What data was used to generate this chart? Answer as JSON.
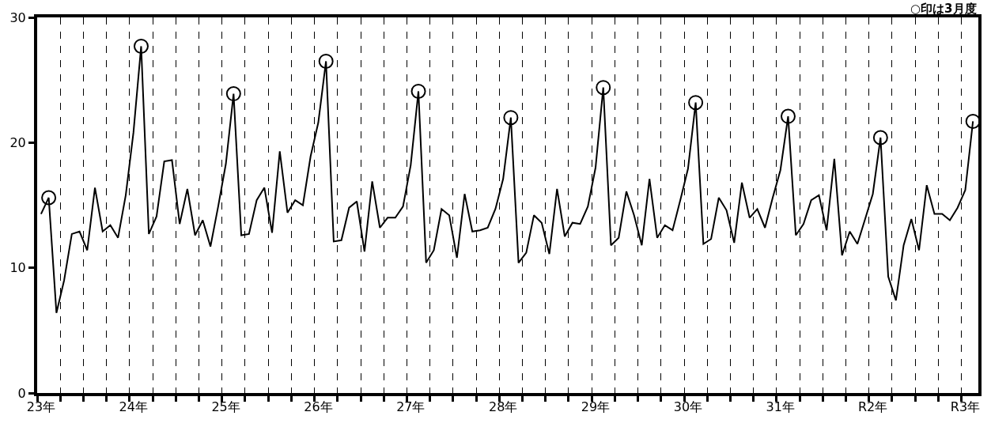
{
  "chart_data": {
    "type": "line",
    "annotations": [
      "○印は3月度"
    ],
    "categories": [
      "23年",
      null,
      null,
      null,
      null,
      null,
      null,
      null,
      null,
      null,
      null,
      null,
      "24年",
      null,
      null,
      null,
      null,
      null,
      null,
      null,
      null,
      null,
      null,
      null,
      "25年",
      null,
      null,
      null,
      null,
      null,
      null,
      null,
      null,
      null,
      null,
      null,
      "26年",
      null,
      null,
      null,
      null,
      null,
      null,
      null,
      null,
      null,
      null,
      null,
      "27年",
      null,
      null,
      null,
      null,
      null,
      null,
      null,
      null,
      null,
      null,
      null,
      "28年",
      null,
      null,
      null,
      null,
      null,
      null,
      null,
      null,
      null,
      null,
      null,
      "29年",
      null,
      null,
      null,
      null,
      null,
      null,
      null,
      null,
      null,
      null,
      null,
      "30年",
      null,
      null,
      null,
      null,
      null,
      null,
      null,
      null,
      null,
      null,
      null,
      "31年",
      null,
      null,
      null,
      null,
      null,
      null,
      null,
      null,
      null,
      null,
      null,
      "R2年",
      null,
      null,
      null,
      null,
      null,
      null,
      null,
      null,
      null,
      null,
      null,
      "R3年",
      null
    ],
    "ylim": [
      0,
      30
    ],
    "yticks": [
      0,
      10,
      20,
      30
    ],
    "grid": "x",
    "series": [
      {
        "color": "#000000",
        "marker": "none",
        "line_style": "solid",
        "values": [
          14.3,
          15.6,
          6.4,
          9.0,
          12.7,
          12.9,
          11.4,
          16.4,
          12.9,
          13.4,
          12.4,
          15.8,
          20.8,
          27.7,
          12.7,
          14.1,
          18.5,
          18.6,
          13.5,
          16.3,
          12.6,
          13.8,
          11.7,
          14.9,
          18.3,
          23.9,
          12.6,
          12.7,
          15.4,
          16.4,
          12.8,
          19.3,
          14.4,
          15.4,
          15.0,
          18.9,
          21.6,
          26.5,
          12.1,
          12.2,
          14.8,
          15.3,
          11.3,
          16.9,
          13.2,
          14.0,
          14.0,
          14.9,
          18.2,
          24.1,
          10.4,
          11.4,
          14.7,
          14.2,
          10.8,
          15.9,
          12.9,
          13.0,
          13.2,
          14.7,
          17.1,
          22.0,
          10.4,
          11.2,
          14.2,
          13.6,
          11.1,
          16.3,
          12.5,
          13.6,
          13.5,
          14.9,
          18.0,
          24.4,
          11.8,
          12.4,
          16.1,
          14.2,
          11.8,
          17.1,
          12.4,
          13.4,
          13.0,
          15.4,
          17.9,
          23.2,
          11.9,
          12.3,
          15.6,
          14.6,
          12.0,
          16.8,
          14.0,
          14.7,
          13.2,
          15.6,
          17.8,
          22.1,
          12.6,
          13.5,
          15.4,
          15.8,
          13.0,
          18.7,
          11.0,
          12.9,
          11.9,
          13.9,
          15.9,
          20.4,
          9.3,
          7.4,
          11.8,
          13.9,
          11.4,
          16.6,
          14.3,
          14.3,
          13.8,
          14.8,
          16.2,
          21.7
        ]
      },
      {
        "type": "scatter",
        "color": "#000000",
        "marker": "circle",
        "values": [
          null,
          15.6,
          null,
          null,
          null,
          null,
          null,
          null,
          null,
          null,
          null,
          null,
          null,
          27.7,
          null,
          null,
          null,
          null,
          null,
          null,
          null,
          null,
          null,
          null,
          null,
          23.9,
          null,
          null,
          null,
          null,
          null,
          null,
          null,
          null,
          null,
          null,
          null,
          26.5,
          null,
          null,
          null,
          null,
          null,
          null,
          null,
          null,
          null,
          null,
          null,
          24.1,
          null,
          null,
          null,
          null,
          null,
          null,
          null,
          null,
          null,
          null,
          null,
          22.0,
          null,
          null,
          null,
          null,
          null,
          null,
          null,
          null,
          null,
          null,
          null,
          24.4,
          null,
          null,
          null,
          null,
          null,
          null,
          null,
          null,
          null,
          null,
          null,
          23.2,
          null,
          null,
          null,
          null,
          null,
          null,
          null,
          null,
          null,
          null,
          null,
          22.1,
          null,
          null,
          null,
          null,
          null,
          null,
          null,
          null,
          null,
          null,
          null,
          20.4,
          null,
          null,
          null,
          null,
          null,
          null,
          null,
          null,
          null,
          null,
          null,
          21.7
        ]
      }
    ]
  }
}
